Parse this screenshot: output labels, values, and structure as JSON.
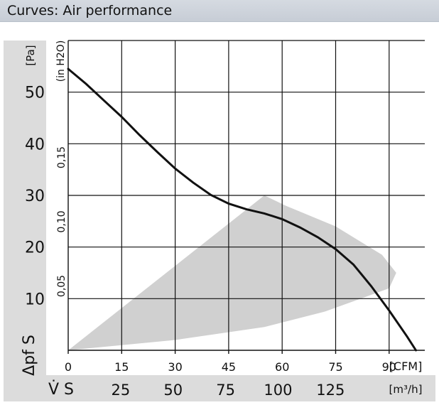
{
  "header": {
    "title": "Curves: Air performance"
  },
  "chart_data": {
    "type": "line",
    "title": "Curves: Air performance",
    "y_axis_primary": {
      "unit": "[Pa]",
      "label": "Δpf S",
      "range": [
        0,
        60
      ],
      "ticks": [
        10,
        20,
        30,
        40,
        50
      ]
    },
    "y_axis_secondary": {
      "unit": "(in H2O)",
      "ticks": [
        {
          "value": 0.05,
          "label": "0,05"
        },
        {
          "value": 0.1,
          "label": "0,10"
        },
        {
          "value": 0.15,
          "label": "0,15"
        }
      ]
    },
    "x_axis_primary": {
      "unit": "[CFM]",
      "range": [
        0,
        100
      ],
      "ticks": [
        0,
        15,
        30,
        45,
        60,
        75,
        90
      ]
    },
    "x_axis_secondary": {
      "unit": "[m³/h]",
      "label": "V̇ S",
      "ticks": [
        25,
        50,
        75,
        100,
        125
      ]
    },
    "series": [
      {
        "name": "Air performance curve",
        "x_cfm": [
          0,
          5,
          10,
          15,
          20,
          25,
          30,
          35,
          40,
          45,
          50,
          55,
          60,
          65,
          70,
          75,
          80,
          85,
          90,
          95,
          97.5
        ],
        "y_pa": [
          54.5,
          51.6,
          48.4,
          45.2,
          41.7,
          38.4,
          35.2,
          32.5,
          30.1,
          28.4,
          27.3,
          26.5,
          25.4,
          23.8,
          21.9,
          19.6,
          16.6,
          12.4,
          7.7,
          2.7,
          0
        ]
      }
    ],
    "operating_region": {
      "description": "shaded recommended operating range",
      "x_cfm": [
        0,
        55,
        61,
        75,
        88,
        92,
        90,
        72,
        55,
        30,
        0
      ],
      "y_pa": [
        0,
        30,
        28,
        24,
        18.5,
        15,
        12,
        7.5,
        4.5,
        2,
        0
      ]
    }
  }
}
